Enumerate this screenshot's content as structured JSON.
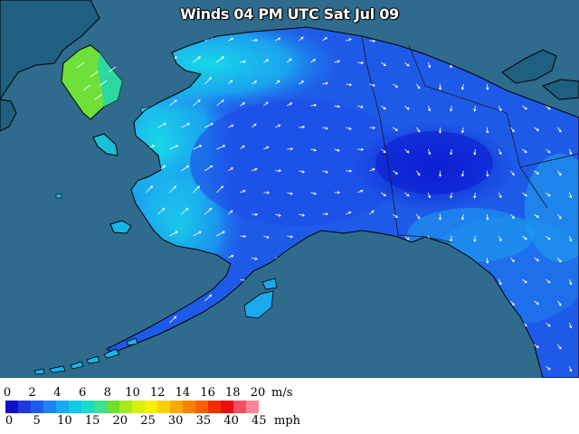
{
  "title": "Winds 04 PM UTC Sat Jul 09",
  "colors": {
    "ocean": "#2f6b8c",
    "land_base": "#1f5bd8",
    "coast": "#000000"
  },
  "legend": {
    "ms_unit": "m/s",
    "mph_unit": "mph",
    "ms_ticks": [
      "0",
      "2",
      "4",
      "6",
      "8",
      "10",
      "12",
      "14",
      "16",
      "18",
      "20"
    ],
    "mph_ticks": [
      "0",
      "5",
      "10",
      "15",
      "20",
      "25",
      "30",
      "35",
      "40",
      "45"
    ],
    "colors": [
      "#1010c8",
      "#1c3ce0",
      "#1e5cf0",
      "#1f84f0",
      "#1aa8ef",
      "#14c8e8",
      "#18dcc8",
      "#40e090",
      "#70e030",
      "#a8e820",
      "#d8f010",
      "#f8f000",
      "#f8d000",
      "#f8a800",
      "#f88000",
      "#f86000",
      "#f03000",
      "#e81010",
      "#f85060",
      "#f88898"
    ]
  }
}
